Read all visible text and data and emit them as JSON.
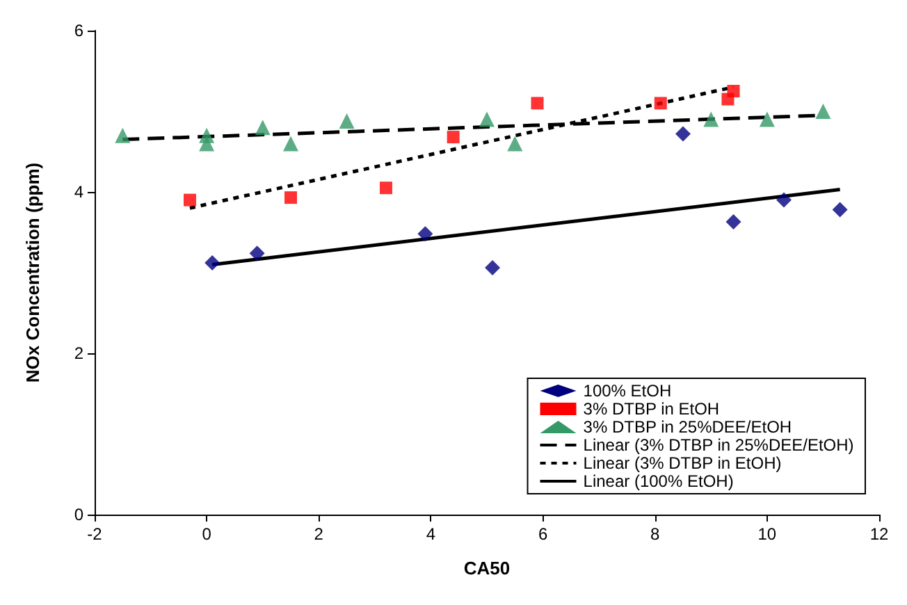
{
  "chart_data": {
    "type": "scatter",
    "xlabel": "CA50",
    "ylabel": "NOx Concentration (ppm)",
    "xlim": [
      -2,
      12
    ],
    "xticks": [
      -2,
      0,
      2,
      4,
      6,
      8,
      10,
      12
    ],
    "ylim": [
      0,
      6
    ],
    "yticks": [
      0,
      2,
      4,
      6
    ],
    "grid": false,
    "legend": "bottom right",
    "series": [
      {
        "name": "100% EtOH",
        "marker": "diamond",
        "color": "#000080",
        "x": [
          0.1,
          0.9,
          3.9,
          5.1,
          8.5,
          9.4,
          10.3,
          11.3
        ],
        "values": [
          3.12,
          3.24,
          3.48,
          3.06,
          4.72,
          3.63,
          3.9,
          3.78
        ]
      },
      {
        "name": "3% DTBP in EtOH",
        "marker": "square",
        "color": "#ff0000",
        "x": [
          -0.3,
          1.5,
          3.2,
          4.4,
          5.9,
          8.1,
          9.3,
          9.4
        ],
        "values": [
          3.9,
          3.93,
          4.05,
          4.68,
          5.1,
          5.1,
          5.15,
          5.25
        ]
      },
      {
        "name": "3% DTBP in 25%DEE/EtOH",
        "marker": "triangle",
        "color": "#339966",
        "x": [
          -1.5,
          0,
          0,
          1,
          1.5,
          2.5,
          5,
          5.5,
          9,
          10,
          11
        ],
        "values": [
          4.7,
          4.7,
          4.6,
          4.8,
          4.6,
          4.88,
          4.9,
          4.6,
          4.9,
          4.9,
          5.0
        ]
      },
      {
        "name": "Linear (3% DTBP in 25%DEE/EtOH)",
        "type": "line",
        "marker": "none",
        "line_style": "dashed",
        "color": "#000000",
        "x": [
          -1.5,
          11
        ],
        "values": [
          4.65,
          4.95
        ]
      },
      {
        "name": "Linear (3% DTBP in EtOH)",
        "type": "line",
        "marker": "none",
        "line_style": "dotted",
        "color": "#000000",
        "x": [
          -0.3,
          9.4
        ],
        "values": [
          3.8,
          5.3
        ]
      },
      {
        "name": "Linear (100% EtOH)",
        "type": "line",
        "marker": "none",
        "line_style": "solid",
        "color": "#000000",
        "x": [
          0.1,
          11.3
        ],
        "values": [
          3.1,
          4.03
        ]
      }
    ]
  }
}
